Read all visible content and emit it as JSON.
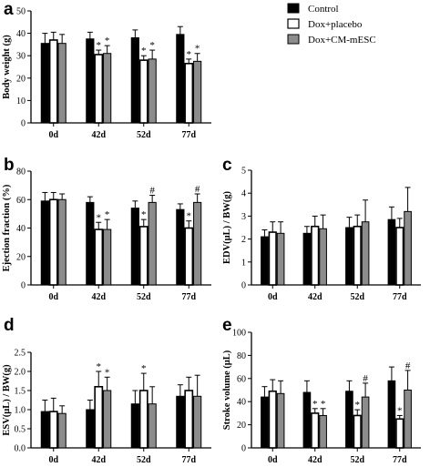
{
  "legend": {
    "entries": [
      "Control",
      "Dox+placebo",
      "Dox+CM-mESC"
    ],
    "colors": [
      "#000000",
      "#ffffff",
      "#8c8c8c"
    ]
  },
  "chart_data": [
    {
      "panel": "a",
      "type": "bar",
      "categories": [
        "0d",
        "42d",
        "52d",
        "77d"
      ],
      "ylabel": "Body weight (g)",
      "ylim": [
        0,
        50
      ],
      "yticks": [
        "0",
        "10",
        "20",
        "30",
        "40",
        "50"
      ],
      "series": [
        {
          "name": "Control",
          "values": [
            35.5,
            37.5,
            38.0,
            39.5
          ],
          "errors": [
            4.5,
            3.0,
            3.5,
            3.5
          ],
          "annotations": [
            "",
            "",
            "",
            ""
          ]
        },
        {
          "name": "Dox+placebo",
          "values": [
            37.0,
            30.5,
            28.0,
            26.5
          ],
          "errors": [
            3.5,
            2.0,
            2.0,
            2.0
          ],
          "annotations": [
            "",
            "*",
            "*",
            "*"
          ]
        },
        {
          "name": "Dox+CM-mESC",
          "values": [
            35.5,
            31.0,
            28.5,
            27.5
          ],
          "errors": [
            4.0,
            3.5,
            4.0,
            3.5
          ],
          "annotations": [
            "",
            "*",
            "*",
            "*"
          ]
        }
      ]
    },
    {
      "panel": "b",
      "type": "bar",
      "categories": [
        "0d",
        "42d",
        "52d",
        "77d"
      ],
      "ylabel": "Ejection fraction (%)",
      "ylim": [
        0,
        80
      ],
      "yticks": [
        "0",
        "20",
        "40",
        "60",
        "80"
      ],
      "series": [
        {
          "name": "Control",
          "values": [
            59,
            58,
            54,
            53
          ],
          "errors": [
            6,
            4,
            5,
            4
          ],
          "annotations": [
            "",
            "",
            "",
            ""
          ]
        },
        {
          "name": "Dox+placebo",
          "values": [
            60,
            39,
            41,
            40
          ],
          "errors": [
            5,
            5,
            5,
            5
          ],
          "annotations": [
            "",
            "*",
            "*",
            "*"
          ]
        },
        {
          "name": "Dox+CM-mESC",
          "values": [
            60,
            39,
            58,
            58
          ],
          "errors": [
            4,
            7,
            5,
            6
          ],
          "annotations": [
            "",
            "*",
            "#",
            "#"
          ]
        }
      ]
    },
    {
      "panel": "c",
      "type": "bar",
      "categories": [
        "0d",
        "42d",
        "52d",
        "77d"
      ],
      "ylabel": "EDV(μL) / BW(g)",
      "ylim": [
        0,
        5
      ],
      "yticks": [
        "0",
        "1",
        "2",
        "3",
        "4",
        "5"
      ],
      "series": [
        {
          "name": "Control",
          "values": [
            2.1,
            2.25,
            2.5,
            2.85
          ],
          "errors": [
            0.3,
            0.3,
            0.45,
            0.55
          ],
          "annotations": [
            "",
            "",
            "",
            ""
          ]
        },
        {
          "name": "Dox+placebo",
          "values": [
            2.3,
            2.55,
            2.55,
            2.5
          ],
          "errors": [
            0.45,
            0.45,
            0.5,
            0.4
          ],
          "annotations": [
            "",
            "",
            "",
            ""
          ]
        },
        {
          "name": "Dox+CM-mESC",
          "values": [
            2.25,
            2.45,
            2.75,
            3.2
          ],
          "errors": [
            0.5,
            0.6,
            0.95,
            1.05
          ],
          "annotations": [
            "",
            "",
            "",
            ""
          ]
        }
      ]
    },
    {
      "panel": "d",
      "type": "bar",
      "categories": [
        "0d",
        "42d",
        "52d",
        "77d"
      ],
      "ylabel": "ESV(μL) / BW(g)",
      "ylim": [
        0,
        2.5
      ],
      "yticks": [
        "0.0",
        "0.5",
        "1.0",
        "1.5",
        "2.0",
        "2.5"
      ],
      "series": [
        {
          "name": "Control",
          "values": [
            0.95,
            1.0,
            1.15,
            1.35
          ],
          "errors": [
            0.3,
            0.25,
            0.35,
            0.3
          ],
          "annotations": [
            "",
            "",
            "",
            ""
          ]
        },
        {
          "name": "Dox+placebo",
          "values": [
            0.95,
            1.6,
            1.5,
            1.5
          ],
          "errors": [
            0.35,
            0.4,
            0.45,
            0.35
          ],
          "annotations": [
            "",
            "*",
            "*",
            ""
          ]
        },
        {
          "name": "Dox+CM-mESC",
          "values": [
            0.9,
            1.5,
            1.15,
            1.35
          ],
          "errors": [
            0.2,
            0.35,
            0.45,
            0.55
          ],
          "annotations": [
            "",
            "*",
            "",
            ""
          ]
        }
      ]
    },
    {
      "panel": "e",
      "type": "bar",
      "categories": [
        "0d",
        "42d",
        "52d",
        "77d"
      ],
      "ylabel": "Stroke volume (μL)",
      "ylim": [
        0,
        100
      ],
      "yticks": [
        "0",
        "20",
        "40",
        "60",
        "80",
        "100"
      ],
      "series": [
        {
          "name": "Control",
          "values": [
            44,
            48,
            49,
            58
          ],
          "errors": [
            9,
            10,
            9,
            12
          ],
          "annotations": [
            "",
            "",
            "",
            ""
          ]
        },
        {
          "name": "Dox+placebo",
          "values": [
            49,
            30,
            28,
            25
          ],
          "errors": [
            10,
            4,
            5,
            3
          ],
          "annotations": [
            "",
            "*",
            "*",
            "*"
          ]
        },
        {
          "name": "Dox+CM-mESC",
          "values": [
            47,
            28,
            44,
            50
          ],
          "errors": [
            11,
            6,
            12,
            17
          ],
          "annotations": [
            "",
            "*",
            "#",
            "#"
          ]
        }
      ]
    }
  ]
}
